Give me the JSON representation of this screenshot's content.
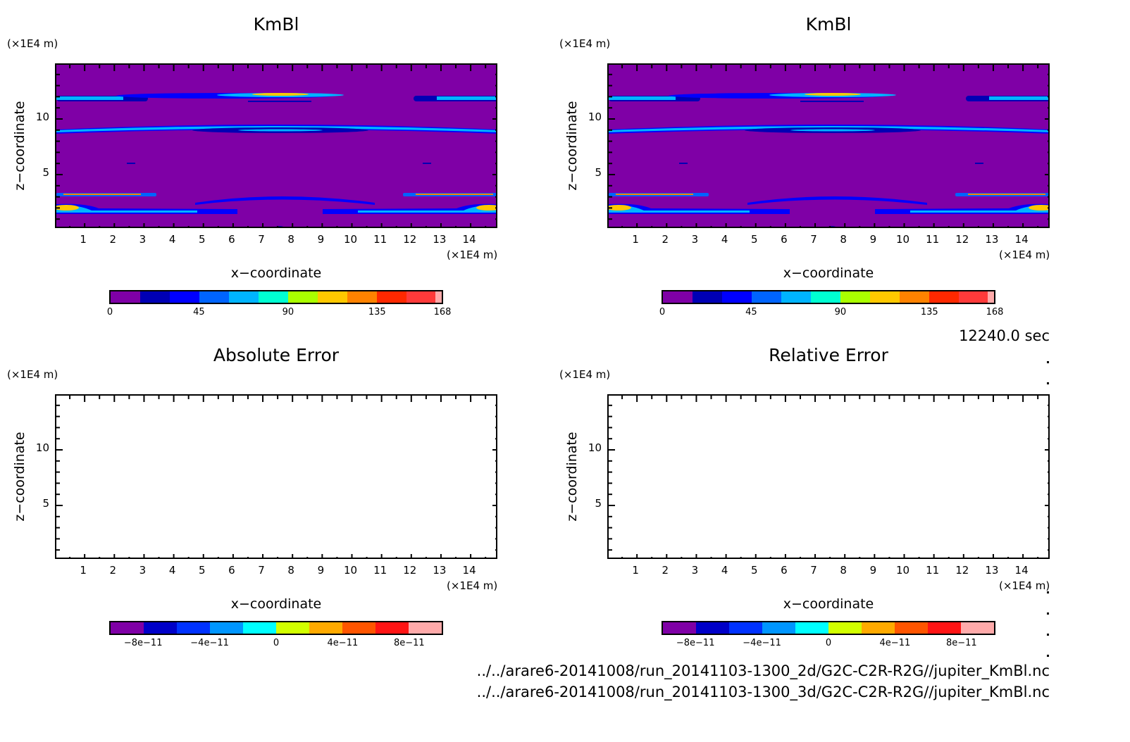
{
  "time_label": "12240.0 sec",
  "file_paths": [
    "../../arare6-20141008/run_20141103-1300_2d/G2C-C2R-R2G//jupiter_KmBl.nc",
    "../../arare6-20141008/run_20141103-1300_3d/G2C-C2R-R2G//jupiter_KmBl.nc"
  ],
  "chart_data": [
    {
      "type": "heatmap",
      "title": "KmBl",
      "xlabel": "x−coordinate",
      "ylabel": "z−coordinate",
      "x_unit": "(×1E4 m)",
      "y_unit": "(×1E4 m)",
      "xlim": [
        0,
        14.9
      ],
      "ylim": [
        0,
        14.9
      ],
      "xticks": [
        "1",
        "2",
        "3",
        "4",
        "5",
        "6",
        "7",
        "8",
        "9",
        "10",
        "11",
        "12",
        "13",
        "14"
      ],
      "yticks": [
        "5",
        "10"
      ],
      "has_field": true,
      "colorbar": {
        "levels": [
          0,
          15,
          30,
          45,
          60,
          75,
          90,
          105,
          120,
          135,
          150,
          165,
          168
        ],
        "colors": [
          "#7F00A6",
          "#0000B4",
          "#0000FF",
          "#0064FF",
          "#00B4FF",
          "#00FFD2",
          "#AAFF00",
          "#FFC800",
          "#FF8200",
          "#FF2800",
          "#FF3A3A",
          "#FFAAAA"
        ],
        "labels": [
          "0",
          "45",
          "90",
          "135",
          "168"
        ],
        "label_values": [
          0,
          45,
          90,
          135,
          168
        ]
      }
    },
    {
      "type": "heatmap",
      "title": "KmBl",
      "xlabel": "x−coordinate",
      "ylabel": "z−coordinate",
      "x_unit": "(×1E4 m)",
      "y_unit": "(×1E4 m)",
      "xlim": [
        0,
        14.9
      ],
      "ylim": [
        0,
        14.9
      ],
      "xticks": [
        "1",
        "2",
        "3",
        "4",
        "5",
        "6",
        "7",
        "8",
        "9",
        "10",
        "11",
        "12",
        "13",
        "14"
      ],
      "yticks": [
        "5",
        "10"
      ],
      "has_field": true,
      "colorbar": {
        "levels": [
          0,
          15,
          30,
          45,
          60,
          75,
          90,
          105,
          120,
          135,
          150,
          165,
          168
        ],
        "colors": [
          "#7F00A6",
          "#0000B4",
          "#0000FF",
          "#0064FF",
          "#00B4FF",
          "#00FFD2",
          "#AAFF00",
          "#FFC800",
          "#FF8200",
          "#FF2800",
          "#FF3A3A",
          "#FFAAAA"
        ],
        "labels": [
          "0",
          "45",
          "90",
          "135",
          "168"
        ],
        "label_values": [
          0,
          45,
          90,
          135,
          168
        ]
      }
    },
    {
      "type": "heatmap",
      "title": "Absolute Error",
      "xlabel": "x−coordinate",
      "ylabel": "z−coordinate",
      "x_unit": "(×1E4 m)",
      "y_unit": "(×1E4 m)",
      "xlim": [
        0,
        14.9
      ],
      "ylim": [
        0,
        14.9
      ],
      "xticks": [
        "1",
        "2",
        "3",
        "4",
        "5",
        "6",
        "7",
        "8",
        "9",
        "10",
        "11",
        "12",
        "13",
        "14"
      ],
      "yticks": [
        "5",
        "10"
      ],
      "has_field": false,
      "colorbar": {
        "levels": [
          -1e-10,
          -8e-11,
          -6e-11,
          -4e-11,
          -2e-11,
          0,
          2e-11,
          4e-11,
          6e-11,
          8e-11,
          1e-10
        ],
        "colors": [
          "#7F00A6",
          "#0000C8",
          "#0032FF",
          "#0096FF",
          "#00FFFF",
          "#D2FF00",
          "#FFAA00",
          "#FF5500",
          "#FF1414",
          "#FFAAAA"
        ],
        "labels": [
          "−8e−11",
          "−4e−11",
          "0",
          "4e−11",
          "8e−11"
        ],
        "label_values": [
          -8e-11,
          -4e-11,
          0,
          4e-11,
          8e-11
        ]
      }
    },
    {
      "type": "heatmap",
      "title": "Relative Error",
      "xlabel": "x−coordinate",
      "ylabel": "z−coordinate",
      "x_unit": "(×1E4 m)",
      "y_unit": "(×1E4 m)",
      "xlim": [
        0,
        14.9
      ],
      "ylim": [
        0,
        14.9
      ],
      "xticks": [
        "1",
        "2",
        "3",
        "4",
        "5",
        "6",
        "7",
        "8",
        "9",
        "10",
        "11",
        "12",
        "13",
        "14"
      ],
      "yticks": [
        "5",
        "10"
      ],
      "has_field": false,
      "colorbar": {
        "levels": [
          -1e-10,
          -8e-11,
          -6e-11,
          -4e-11,
          -2e-11,
          0,
          2e-11,
          4e-11,
          6e-11,
          8e-11,
          1e-10
        ],
        "colors": [
          "#7F00A6",
          "#0000C8",
          "#0032FF",
          "#0096FF",
          "#00FFFF",
          "#D2FF00",
          "#FFAA00",
          "#FF5500",
          "#FF1414",
          "#FFAAAA"
        ],
        "labels": [
          "−8e−11",
          "−4e−11",
          "0",
          "4e−11",
          "8e−11"
        ],
        "label_values": [
          -8e-11,
          -4e-11,
          0,
          4e-11,
          8e-11
        ]
      }
    }
  ]
}
